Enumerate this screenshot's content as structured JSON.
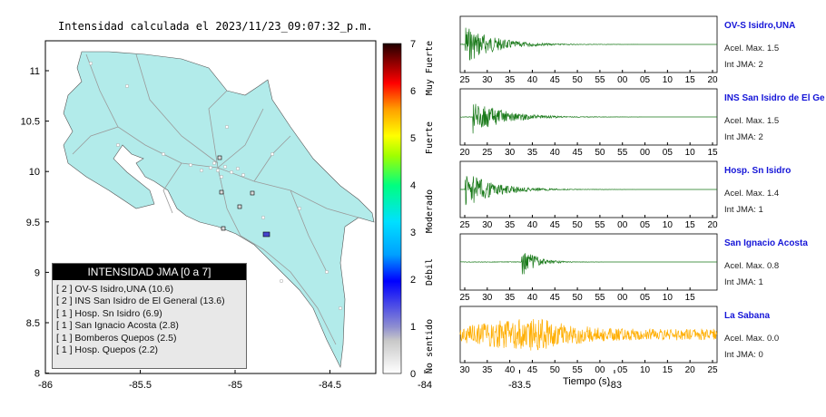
{
  "map": {
    "title": "Intensidad calculada el 2023/11/23_09:07:32_p.m.",
    "xticks": [
      "-86",
      "-85.5",
      "-85",
      "-84.5",
      "-84",
      "-83.5",
      "-83"
    ],
    "yticks": [
      "11",
      "10.5",
      "10",
      "9.5",
      "9",
      "8.5",
      "8"
    ],
    "land_color": "#b2ebea"
  },
  "colorbar": {
    "ticks": [
      "0",
      "1",
      "2",
      "3",
      "4",
      "5",
      "6",
      "7"
    ],
    "labels": [
      "No sentido",
      "Débil",
      "Moderado",
      "Fuerte",
      "Muy Fuerte"
    ]
  },
  "legend": {
    "title": "INTENSIDAD JMA [0 a 7]",
    "rows": [
      "[ 2 ]  OV-S Isidro,UNA (10.6)",
      "[ 2 ]  INS San Isidro de El General (13.6)",
      "[ 1 ]  Hosp. Sn Isidro (6.9)",
      "[ 1 ]  San Ignacio Acosta (2.8)",
      "[ 1 ]  Bomberos Quepos (2.5)",
      "[ 1 ]  Hosp. Quepos (2.2)"
    ]
  },
  "stations": [
    {
      "name": "OV-S Isidro,UNA",
      "acc": "Acel. Max. 1.5",
      "jma": "Int JMA: 2",
      "color": "#1a7a1a",
      "ticks": [
        "25",
        "30",
        "35",
        "40",
        "45",
        "50",
        "55",
        "00",
        "05",
        "10",
        "15",
        "20"
      ]
    },
    {
      "name": "INS San Isidro de El Ge",
      "acc": "Acel. Max. 1.5",
      "jma": "Int JMA: 2",
      "color": "#1a7a1a",
      "ticks": [
        "20",
        "25",
        "30",
        "35",
        "40",
        "45",
        "50",
        "55",
        "00",
        "05",
        "10",
        "15"
      ]
    },
    {
      "name": "Hosp. Sn Isidro",
      "acc": "Acel. Max. 1.4",
      "jma": "Int JMA: 1",
      "color": "#1a7a1a",
      "ticks": [
        "25",
        "30",
        "35",
        "40",
        "45",
        "50",
        "55",
        "00",
        "05",
        "10",
        "15",
        "20"
      ]
    },
    {
      "name": "San Ignacio Acosta",
      "acc": "Acel. Max. 0.8",
      "jma": "Int JMA: 1",
      "color": "#1a7a1a",
      "ticks": [
        "25",
        "30",
        "35",
        "40",
        "45",
        "50",
        "55",
        "00",
        "05",
        "10",
        "15"
      ]
    },
    {
      "name": "La Sabana",
      "acc": "Acel. Max. 0.0",
      "jma": "Int JMA: 0",
      "color": "#ffae00",
      "ticks": [
        "30",
        "35",
        "40",
        "45",
        "50",
        "55",
        "00",
        "05",
        "10",
        "15",
        "20",
        "25"
      ]
    }
  ],
  "xlabel": "Tiempo (s)"
}
